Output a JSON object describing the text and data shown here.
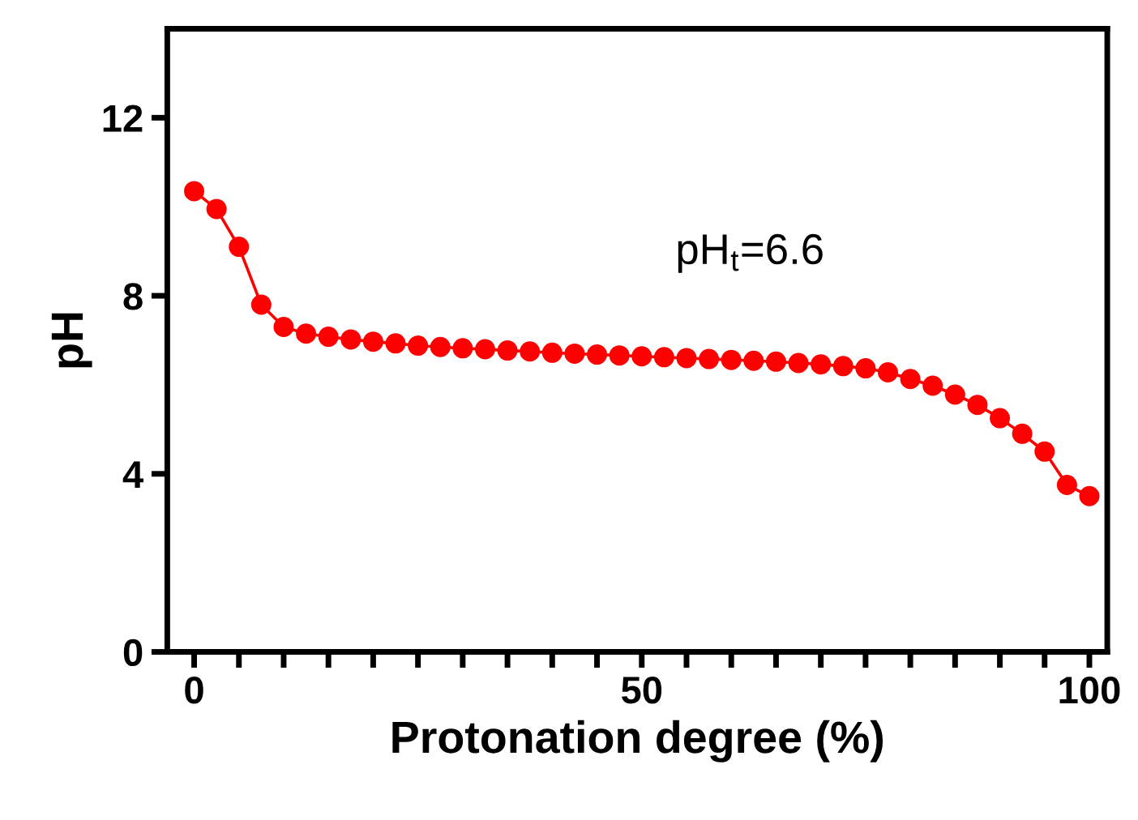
{
  "chart_data": {
    "type": "line",
    "xlabel": "Protonation degree (%)",
    "ylabel": "pH",
    "x": [
      0,
      2.5,
      5,
      7.5,
      10,
      12.5,
      15,
      17.5,
      20,
      22.5,
      25,
      27.5,
      30,
      32.5,
      35,
      37.5,
      40,
      42.5,
      45,
      47.5,
      50,
      52.5,
      55,
      57.5,
      60,
      62.5,
      65,
      67.5,
      70,
      72.5,
      75,
      77.5,
      80,
      82.5,
      85,
      87.5,
      90,
      92.5,
      95,
      97.5,
      100
    ],
    "series": [
      {
        "color": "#ff0000",
        "values": [
          10.35,
          9.95,
          9.1,
          7.8,
          7.3,
          7.15,
          7.08,
          7.02,
          6.97,
          6.93,
          6.88,
          6.85,
          6.82,
          6.8,
          6.77,
          6.75,
          6.72,
          6.7,
          6.68,
          6.66,
          6.64,
          6.62,
          6.6,
          6.58,
          6.56,
          6.54,
          6.52,
          6.49,
          6.46,
          6.42,
          6.37,
          6.28,
          6.13,
          5.98,
          5.78,
          5.55,
          5.25,
          4.9,
          4.5,
          3.75,
          3.5
        ]
      }
    ],
    "marker": "circle",
    "line_style": "solid",
    "grid": false,
    "legend": false,
    "xlim": [
      -3,
      102
    ],
    "ylim": [
      0,
      14
    ],
    "xticks": [
      0,
      {
        "value": 5,
        "label": null
      },
      {
        "value": 10,
        "label": null
      },
      {
        "value": 15,
        "label": null
      },
      {
        "value": 20,
        "label": null
      },
      {
        "value": 25,
        "label": null
      },
      {
        "value": 30,
        "label": null
      },
      {
        "value": 35,
        "label": null
      },
      {
        "value": 40,
        "label": null
      },
      {
        "value": 45,
        "label": null
      },
      50,
      {
        "value": 55,
        "label": null
      },
      {
        "value": 60,
        "label": null
      },
      {
        "value": 65,
        "label": null
      },
      {
        "value": 70,
        "label": null
      },
      {
        "value": 75,
        "label": null
      },
      {
        "value": 80,
        "label": null
      },
      {
        "value": 85,
        "label": null
      },
      {
        "value": 90,
        "label": null
      },
      {
        "value": 95,
        "label": null
      },
      100
    ],
    "yticks": [
      0,
      4,
      8,
      12
    ],
    "annotations": [
      "pH$_{t}$=6.6"
    ]
  }
}
